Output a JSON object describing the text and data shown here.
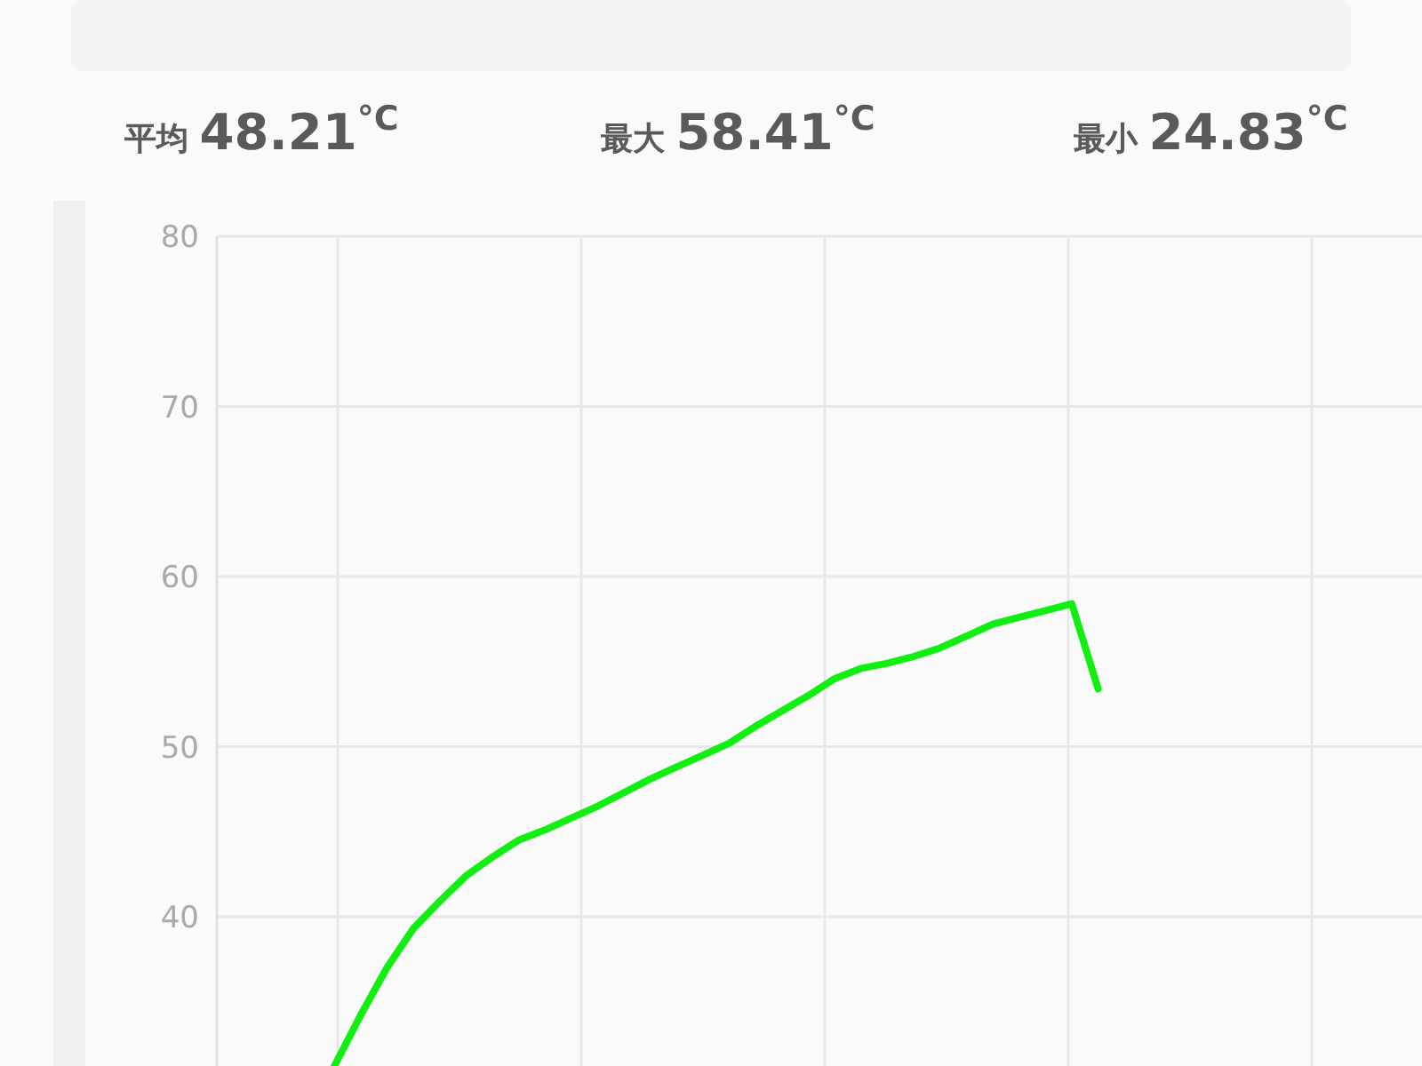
{
  "chart_data": {
    "type": "line",
    "annotations": [
      "平均 **48.21$^{°C}$**",
      "最大 **58.41$^{°C}$**",
      "最小 **24.83$^{°C}$**"
    ],
    "categories": [
      null,
      null,
      null,
      null,
      null,
      null,
      null,
      null,
      null,
      null,
      null,
      null,
      null,
      null,
      null,
      null,
      null,
      null,
      null,
      null,
      null,
      null,
      null,
      null,
      null,
      null,
      null,
      null,
      null,
      null
    ],
    "series": [
      {
        "color": "#11ee11",
        "values": [
          31.2,
          34.2,
          37.0,
          39.3,
          40.9,
          42.4,
          43.5,
          44.5,
          45.1,
          45.8,
          46.5,
          47.3,
          48.1,
          48.8,
          49.5,
          50.2,
          51.2,
          52.1,
          53.0,
          54.0,
          54.6,
          54.9,
          55.3,
          55.8,
          56.5,
          57.2,
          57.6,
          58.0,
          58.4,
          53.4
        ]
      }
    ],
    "ylim": [
      31,
      80
    ],
    "yticks": [
      40,
      50,
      60,
      70,
      80
    ],
    "grid": true
  }
}
